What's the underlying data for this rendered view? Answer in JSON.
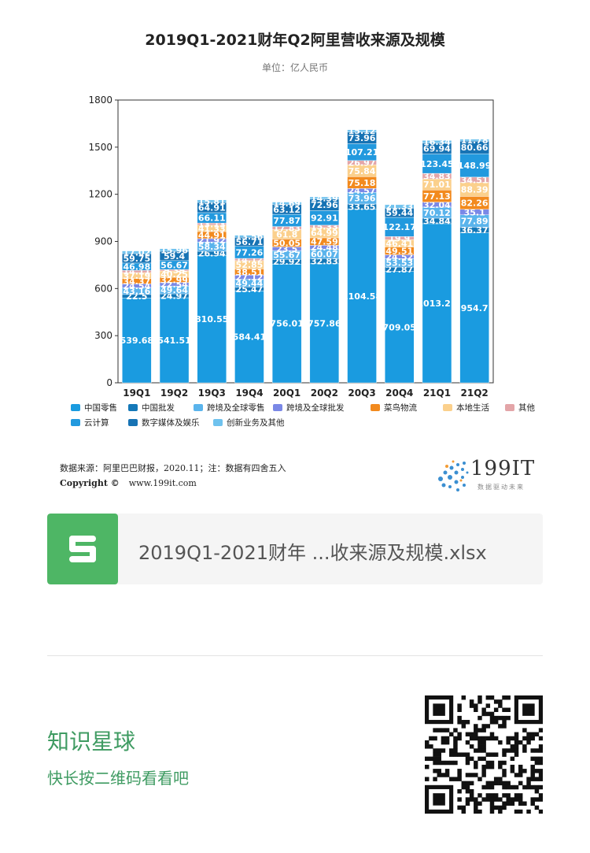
{
  "header": {
    "title": "2019Q1-2021财年Q2阿里营收来源及规模",
    "subtitle": "单位：亿人民币"
  },
  "chart_data": {
    "type": "bar",
    "stacked": true,
    "categories": [
      "19Q1",
      "19Q2",
      "19Q3",
      "19Q4",
      "20Q1",
      "20Q2",
      "20Q3",
      "20Q4",
      "21Q1",
      "21Q2"
    ],
    "ylim": [
      0,
      1800
    ],
    "yticks": [
      0,
      300,
      600,
      900,
      1200,
      1500,
      1800
    ],
    "grid": false,
    "legend_position": "bottom",
    "series": [
      {
        "name": "中国零售",
        "color": "#1a9be0",
        "values": [
          539.68,
          541.51,
          810.55,
          584.41,
          756.01,
          757.86,
          1104.58,
          709.05,
          1013.21,
          954.7
        ]
      },
      {
        "name": "中国批发",
        "color": "#1478b8",
        "values": [
          22.5,
          24.97,
          26.94,
          25.47,
          29.92,
          32.83,
          33.65,
          27.87,
          34.84,
          36.37
        ]
      },
      {
        "name": "跨境及全球零售",
        "color": "#5ab4ec",
        "values": [
          43.16,
          49.64,
          58.34,
          49.44,
          55.67,
          60.07,
          73.96,
          53.53,
          70.12,
          77.89
        ]
      },
      {
        "name": "跨境及全球批发",
        "color": "#7a88e6",
        "values": [
          24.54,
          22.54,
          21.92,
          27.12,
          23.5,
          24.48,
          24.57,
          24.52,
          32.04,
          35.1
        ]
      },
      {
        "name": "菜鸟物流",
        "color": "#f28a1e",
        "values": [
          34.37,
          32.99,
          44.91,
          38.51,
          50.05,
          47.59,
          75.18,
          49.51,
          77.13,
          82.26
        ]
      },
      {
        "name": "本地生活",
        "color": "#fbd08c",
        "values": [
          37.19,
          40.25,
          41.33,
          52.85,
          61.8,
          64.99,
          75.84,
          46.41,
          71.01,
          88.39
        ]
      },
      {
        "name": "其他",
        "color": "#e3a5a8",
        "values": [
          14.11,
          9.39,
          13.13,
          14.12,
          17.83,
          15.33,
          26.97,
          19.9,
          34.83,
          34.51
        ]
      },
      {
        "name": "云计算",
        "color": "#2299de",
        "values": [
          46.98,
          56.67,
          66.11,
          77.26,
          77.87,
          92.91,
          107.21,
          122.17,
          123.45,
          148.99
        ]
      },
      {
        "name": "数字媒体及娱乐",
        "color": "#1773b4",
        "values": [
          59.75,
          59.4,
          64.91,
          56.71,
          63.12,
          72.96,
          73.96,
          59.44,
          69.94,
          80.66
        ]
      },
      {
        "name": "创新业务及其他",
        "color": "#6fc2ee",
        "values": [
          17.02,
          15.96,
          15.81,
          13.56,
          14.69,
          14.39,
          15.12,
          21.33,
          16.34,
          11.78
        ]
      }
    ]
  },
  "footer": {
    "source": "数据来源：阿里巴巴财报，2020.11；注：数据有四舍五入",
    "copyright_label": "Copyright ©",
    "website": "www.199it.com",
    "brand_name": "199IT",
    "brand_tagline": "数据驱动未来"
  },
  "attachment": {
    "icon": "spreadsheet-s-icon",
    "filename": "2019Q1-2021财年 ...收来源及规模.xlsx"
  },
  "promo": {
    "title": "知识星球",
    "subtitle": "快长按二维码看看吧",
    "qr_icon": "qr-code-icon"
  },
  "colors": {
    "accent_green": "#3f9b62",
    "file_icon_green": "#4eb665"
  }
}
